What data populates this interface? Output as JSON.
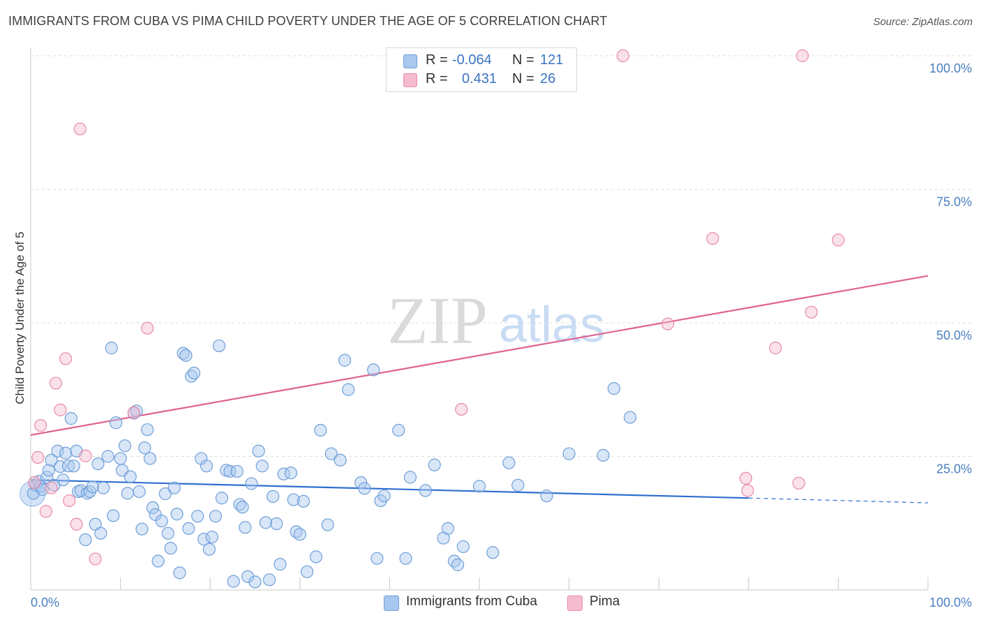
{
  "title": "IMMIGRANTS FROM CUBA VS PIMA CHILD POVERTY UNDER THE AGE OF 5 CORRELATION CHART",
  "source": "Source: ZipAtlas.com",
  "watermark": {
    "zip": "ZIP",
    "atlas": "atlas"
  },
  "colors": {
    "blue_fill": "#a9c8ef",
    "blue_stroke": "#6f9fd8",
    "blue_line": "#2f6fcf",
    "pink_fill": "#f5bcd0",
    "pink_stroke": "#e88aaa",
    "pink_line": "#e0628f",
    "tick_text": "#4a7fc1",
    "grid": "#dddddd"
  },
  "legend": {
    "rows": [
      {
        "r_label": "R =",
        "r_value": "-0.064",
        "n_label": "N =",
        "n_value": "121"
      },
      {
        "r_label": "R =",
        "r_value": "0.431",
        "n_label": "N =",
        "n_value": "26"
      }
    ]
  },
  "chart_data": {
    "type": "scatter",
    "title": "IMMIGRANTS FROM CUBA VS PIMA CHILD POVERTY UNDER THE AGE OF 5 CORRELATION CHART",
    "xlabel": "",
    "ylabel": "Child Poverty Under the Age of 5",
    "xlim": [
      0,
      100
    ],
    "ylim": [
      0,
      100
    ],
    "x_tick_labels": [
      "0.0%",
      "100.0%"
    ],
    "y_ticks": [
      25,
      50,
      75,
      100
    ],
    "y_tick_labels": [
      "25.0%",
      "50.0%",
      "75.0%",
      "100.0%"
    ],
    "grid": true,
    "legend_position": "top-center and bottom",
    "series": [
      {
        "name": "Immigrants from Cuba",
        "color": "#6f9fd8",
        "r": -0.064,
        "n": 121,
        "trend": {
          "x": [
            0,
            80
          ],
          "y": [
            20.6,
            17.2
          ],
          "dashed_to": [
            100,
            16.3
          ]
        },
        "points": [
          [
            0.3,
            18.1
          ],
          [
            0.6,
            19.6
          ],
          [
            0.9,
            20.3
          ],
          [
            1.1,
            19.4
          ],
          [
            1.3,
            18.8
          ],
          [
            1.8,
            21.1
          ],
          [
            2.0,
            22.4
          ],
          [
            2.3,
            24.3
          ],
          [
            2.6,
            19.6
          ],
          [
            3.0,
            26.0
          ],
          [
            3.3,
            23.1
          ],
          [
            3.6,
            20.6
          ],
          [
            3.9,
            25.6
          ],
          [
            4.2,
            23.2
          ],
          [
            4.5,
            32.1
          ],
          [
            4.8,
            23.2
          ],
          [
            5.1,
            26.0
          ],
          [
            5.3,
            18.4
          ],
          [
            5.6,
            18.6
          ],
          [
            6.1,
            9.4
          ],
          [
            6.3,
            18.1
          ],
          [
            6.6,
            18.4
          ],
          [
            6.9,
            19.3
          ],
          [
            7.2,
            12.3
          ],
          [
            7.5,
            23.6
          ],
          [
            7.8,
            10.6
          ],
          [
            8.1,
            19.1
          ],
          [
            8.6,
            25.0
          ],
          [
            9.0,
            45.3
          ],
          [
            9.2,
            13.9
          ],
          [
            9.5,
            31.3
          ],
          [
            10.0,
            24.6
          ],
          [
            10.2,
            22.4
          ],
          [
            10.5,
            27.0
          ],
          [
            10.8,
            18.1
          ],
          [
            11.1,
            21.2
          ],
          [
            11.5,
            33.1
          ],
          [
            11.8,
            33.5
          ],
          [
            12.1,
            18.4
          ],
          [
            12.4,
            11.4
          ],
          [
            12.7,
            26.6
          ],
          [
            13.0,
            30.0
          ],
          [
            13.3,
            24.6
          ],
          [
            13.6,
            15.4
          ],
          [
            13.9,
            14.1
          ],
          [
            14.2,
            5.4
          ],
          [
            14.6,
            12.9
          ],
          [
            15.0,
            18.0
          ],
          [
            15.3,
            10.6
          ],
          [
            15.6,
            7.8
          ],
          [
            16.0,
            19.1
          ],
          [
            16.3,
            14.2
          ],
          [
            16.6,
            3.2
          ],
          [
            17.0,
            44.3
          ],
          [
            17.3,
            43.9
          ],
          [
            17.6,
            11.5
          ],
          [
            17.9,
            40.0
          ],
          [
            18.2,
            40.6
          ],
          [
            18.6,
            13.8
          ],
          [
            19.0,
            24.6
          ],
          [
            19.3,
            9.5
          ],
          [
            19.6,
            23.2
          ],
          [
            19.9,
            7.6
          ],
          [
            20.2,
            9.9
          ],
          [
            20.6,
            13.8
          ],
          [
            21.0,
            45.7
          ],
          [
            21.3,
            17.2
          ],
          [
            21.8,
            22.4
          ],
          [
            22.2,
            22.2
          ],
          [
            22.6,
            1.6
          ],
          [
            23.0,
            22.2
          ],
          [
            23.3,
            16.0
          ],
          [
            23.6,
            15.5
          ],
          [
            23.9,
            11.7
          ],
          [
            24.2,
            2.5
          ],
          [
            24.6,
            19.9
          ],
          [
            25.0,
            1.5
          ],
          [
            25.4,
            26.0
          ],
          [
            25.8,
            23.2
          ],
          [
            26.2,
            12.6
          ],
          [
            26.6,
            1.9
          ],
          [
            27.0,
            17.5
          ],
          [
            27.4,
            12.4
          ],
          [
            27.8,
            4.8
          ],
          [
            28.2,
            21.7
          ],
          [
            29.0,
            21.9
          ],
          [
            29.3,
            16.9
          ],
          [
            29.6,
            10.9
          ],
          [
            30.0,
            10.4
          ],
          [
            30.4,
            16.6
          ],
          [
            30.8,
            3.4
          ],
          [
            31.8,
            6.2
          ],
          [
            32.3,
            29.9
          ],
          [
            33.1,
            12.2
          ],
          [
            33.5,
            25.5
          ],
          [
            34.5,
            24.3
          ],
          [
            35.0,
            43.0
          ],
          [
            35.4,
            37.5
          ],
          [
            36.8,
            20.1
          ],
          [
            37.2,
            19.0
          ],
          [
            38.2,
            41.2
          ],
          [
            38.6,
            5.9
          ],
          [
            39.0,
            16.7
          ],
          [
            39.4,
            17.6
          ],
          [
            41.0,
            29.9
          ],
          [
            41.8,
            5.9
          ],
          [
            42.3,
            21.1
          ],
          [
            44.0,
            18.6
          ],
          [
            45.0,
            23.4
          ],
          [
            46.0,
            9.7
          ],
          [
            46.5,
            11.5
          ],
          [
            47.2,
            5.4
          ],
          [
            47.6,
            4.7
          ],
          [
            48.2,
            8.1
          ],
          [
            50.0,
            19.4
          ],
          [
            51.5,
            7.0
          ],
          [
            53.3,
            23.8
          ],
          [
            54.3,
            19.6
          ],
          [
            57.5,
            17.6
          ],
          [
            60.0,
            25.5
          ],
          [
            63.8,
            25.2
          ],
          [
            65.0,
            37.7
          ],
          [
            66.8,
            32.3
          ]
        ]
      },
      {
        "name": "Pima",
        "color": "#e88aaa",
        "r": 0.431,
        "n": 26,
        "trend": {
          "x": [
            0,
            100
          ],
          "y": [
            29.0,
            58.8
          ]
        },
        "points": [
          [
            0.4,
            20.1
          ],
          [
            0.8,
            24.8
          ],
          [
            1.1,
            30.8
          ],
          [
            1.7,
            14.7
          ],
          [
            2.3,
            19.1
          ],
          [
            2.8,
            38.7
          ],
          [
            3.3,
            33.7
          ],
          [
            3.9,
            43.3
          ],
          [
            4.3,
            16.7
          ],
          [
            5.1,
            12.3
          ],
          [
            5.5,
            86.3
          ],
          [
            6.1,
            25.1
          ],
          [
            7.2,
            5.8
          ],
          [
            11.5,
            33.2
          ],
          [
            13.0,
            49.0
          ],
          [
            48.0,
            33.8
          ],
          [
            66.0,
            100.0
          ],
          [
            71.0,
            49.8
          ],
          [
            76.0,
            65.8
          ],
          [
            79.7,
            20.9
          ],
          [
            79.9,
            18.6
          ],
          [
            83.0,
            45.3
          ],
          [
            85.6,
            20.0
          ],
          [
            86.0,
            100.0
          ],
          [
            87.0,
            52.0
          ],
          [
            90.0,
            65.5
          ]
        ]
      }
    ]
  },
  "bottom_legend": {
    "series_1": "Immigrants from Cuba",
    "series_2": "Pima"
  }
}
